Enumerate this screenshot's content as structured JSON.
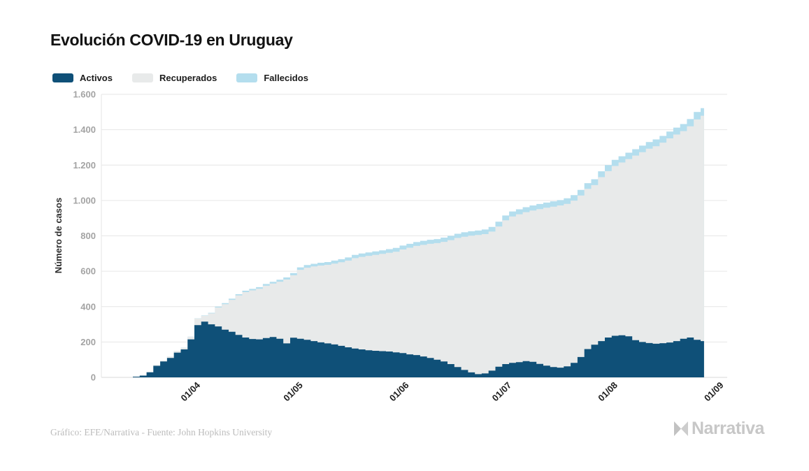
{
  "header": {
    "title": "Evolución COVID-19 en Uruguay"
  },
  "legend": [
    {
      "label": "Activos",
      "color": "#0f5078"
    },
    {
      "label": "Recuperados",
      "color": "#e8eaea"
    },
    {
      "label": "Fallecidos",
      "color": "#b4deee"
    }
  ],
  "footer": {
    "credit": "Gráfico: EFE/Narrativa - Fuente: John Hopkins University",
    "brand": "Narrativa"
  },
  "chart_data": {
    "type": "area",
    "stacked": true,
    "title": "Evolución COVID-19 en Uruguay",
    "xlabel": "",
    "ylabel": "Número de casos",
    "ylim": [
      0,
      1600
    ],
    "grid": true,
    "legend_position": "top-left",
    "y_tick_values": [
      0,
      200,
      400,
      600,
      800,
      1000,
      1200,
      1400,
      1600
    ],
    "y_tick_labels": [
      "0",
      "200",
      "400",
      "600",
      "800",
      "1.000",
      "1.200",
      "1.400",
      "1.600"
    ],
    "x_tick_labels": [
      "01/04",
      "01/05",
      "01/06",
      "01/07",
      "01/08",
      "01/09"
    ],
    "x_tick_days": [
      18,
      48,
      79,
      109,
      140,
      171
    ],
    "dates": [
      "14/03",
      "16/03",
      "18/03",
      "20/03",
      "22/03",
      "24/03",
      "26/03",
      "28/03",
      "30/03",
      "01/04",
      "03/04",
      "05/04",
      "07/04",
      "09/04",
      "11/04",
      "13/04",
      "15/04",
      "17/04",
      "19/04",
      "21/04",
      "23/04",
      "25/04",
      "27/04",
      "29/04",
      "01/05",
      "03/05",
      "05/05",
      "07/05",
      "09/05",
      "11/05",
      "13/05",
      "15/05",
      "17/05",
      "19/05",
      "21/05",
      "23/05",
      "25/05",
      "27/05",
      "29/05",
      "31/05",
      "02/06",
      "04/06",
      "06/06",
      "08/06",
      "10/06",
      "12/06",
      "14/06",
      "16/06",
      "18/06",
      "20/06",
      "22/06",
      "24/06",
      "26/06",
      "28/06",
      "30/06",
      "02/07",
      "04/07",
      "06/07",
      "08/07",
      "10/07",
      "12/07",
      "14/07",
      "16/07",
      "18/07",
      "20/07",
      "22/07",
      "24/07",
      "26/07",
      "28/07",
      "30/07",
      "01/08",
      "03/08",
      "05/08",
      "07/08",
      "09/08",
      "11/08",
      "13/08",
      "15/08",
      "17/08",
      "19/08",
      "21/08",
      "23/08",
      "25/08",
      "27/08"
    ],
    "series": [
      {
        "name": "Activos",
        "color": "#0f5078",
        "values": [
          4,
          10,
          29,
          65,
          90,
          110,
          140,
          158,
          215,
          295,
          315,
          300,
          288,
          270,
          258,
          240,
          225,
          217,
          215,
          222,
          228,
          218,
          192,
          224,
          218,
          212,
          205,
          198,
          192,
          186,
          178,
          170,
          163,
          158,
          153,
          150,
          148,
          146,
          141,
          137,
          130,
          126,
          118,
          110,
          100,
          90,
          75,
          58,
          42,
          28,
          18,
          22,
          38,
          60,
          75,
          82,
          86,
          92,
          88,
          76,
          66,
          58,
          55,
          62,
          82,
          115,
          160,
          185,
          205,
          225,
          235,
          238,
          232,
          210,
          200,
          194,
          190,
          193,
          197,
          205,
          218,
          225,
          212,
          205
        ]
      },
      {
        "name": "Recuperados",
        "color": "#e8eaea",
        "values": [
          0,
          1,
          1,
          5,
          4,
          8,
          10,
          9,
          14,
          38,
          33,
          62,
          107,
          144,
          180,
          223,
          257,
          275,
          286,
          296,
          302,
          323,
          361,
          353,
          390,
          408,
          422,
          434,
          444,
          457,
          473,
          490,
          511,
          523,
          534,
          542,
          550,
          558,
          569,
          586,
          603,
          617,
          631,
          645,
          659,
          676,
          701,
          730,
          753,
          773,
          787,
          788,
          786,
          793,
          813,
          828,
          836,
          842,
          855,
          875,
          893,
          907,
          917,
          919,
          917,
          913,
          906,
          902,
          927,
          941,
          960,
          977,
          1002,
          1044,
          1073,
          1099,
          1117,
          1134,
          1154,
          1168,
          1174,
          1194,
          1246,
          1274
        ]
      },
      {
        "name": "Fallecidos",
        "color": "#b4deee",
        "values": [
          0,
          0,
          0,
          0,
          0,
          0,
          0,
          1,
          1,
          1,
          2,
          3,
          5,
          6,
          7,
          7,
          8,
          8,
          9,
          10,
          10,
          11,
          12,
          13,
          14,
          15,
          15,
          16,
          16,
          17,
          17,
          18,
          18,
          19,
          19,
          20,
          20,
          21,
          22,
          22,
          22,
          22,
          23,
          23,
          23,
          24,
          24,
          24,
          25,
          25,
          25,
          26,
          26,
          27,
          27,
          28,
          28,
          28,
          29,
          29,
          29,
          30,
          30,
          31,
          31,
          32,
          32,
          33,
          33,
          34,
          35,
          35,
          36,
          36,
          37,
          37,
          38,
          38,
          39,
          39,
          40,
          41,
          42,
          43
        ]
      }
    ]
  }
}
